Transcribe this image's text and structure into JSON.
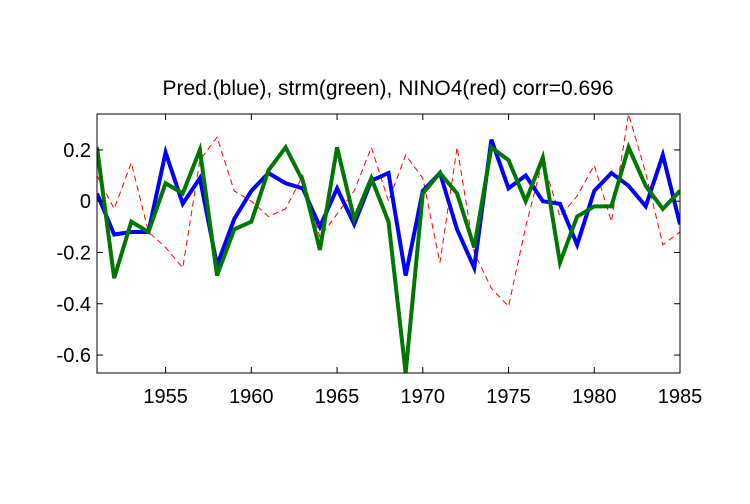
{
  "chart_data": {
    "type": "line",
    "title": "Pred.(blue), strm(green), NINO4(red) corr=0.696",
    "xlabel": "",
    "ylabel": "",
    "xlim": [
      1951,
      1985
    ],
    "ylim": [
      -0.67,
      0.34
    ],
    "grid": false,
    "x_ticks": [
      1955,
      1960,
      1965,
      1970,
      1975,
      1980,
      1985
    ],
    "y_ticks": [
      0.2,
      0,
      -0.2,
      -0.4,
      -0.6
    ],
    "y_tick_labels": [
      "0.2",
      "0",
      "-0.2",
      "-0.4",
      "-0.6"
    ],
    "x": [
      1951,
      1952,
      1953,
      1954,
      1955,
      1956,
      1957,
      1958,
      1959,
      1960,
      1961,
      1962,
      1963,
      1964,
      1965,
      1966,
      1967,
      1968,
      1969,
      1970,
      1971,
      1972,
      1973,
      1974,
      1975,
      1976,
      1977,
      1978,
      1979,
      1980,
      1981,
      1982,
      1983,
      1984,
      1985
    ],
    "series": [
      {
        "color": "#0000ff",
        "style": "solid",
        "width": 4,
        "values": [
          0.03,
          -0.13,
          -0.12,
          -0.12,
          0.19,
          -0.01,
          0.09,
          -0.25,
          -0.07,
          0.04,
          0.11,
          0.07,
          0.05,
          -0.1,
          0.05,
          -0.09,
          0.08,
          0.11,
          -0.29,
          0.04,
          0.11,
          -0.11,
          -0.26,
          0.24,
          0.05,
          0.1,
          0.0,
          -0.01,
          -0.17,
          0.04,
          0.11,
          0.06,
          -0.02,
          0.18,
          -0.09
        ]
      },
      {
        "color": "#007700",
        "style": "solid",
        "width": 4,
        "values": [
          0.21,
          -0.3,
          -0.08,
          -0.12,
          0.07,
          0.03,
          0.2,
          -0.29,
          -0.11,
          -0.08,
          0.12,
          0.21,
          0.08,
          -0.19,
          0.21,
          -0.07,
          0.09,
          -0.08,
          -0.67,
          0.03,
          0.11,
          0.03,
          -0.18,
          0.21,
          0.16,
          0.0,
          0.17,
          -0.24,
          -0.06,
          -0.02,
          -0.02,
          0.21,
          0.06,
          -0.03,
          0.04
        ]
      },
      {
        "color": "#ff0000",
        "style": "dashed",
        "width": 1,
        "values": [
          0.1,
          -0.03,
          0.15,
          -0.12,
          -0.18,
          -0.26,
          0.16,
          0.25,
          0.04,
          0.0,
          -0.06,
          -0.03,
          0.1,
          -0.14,
          -0.05,
          0.04,
          0.21,
          0.0,
          0.18,
          0.09,
          -0.24,
          0.21,
          -0.2,
          -0.34,
          -0.41,
          -0.1,
          0.16,
          -0.06,
          0.02,
          0.14,
          -0.08,
          0.34,
          0.11,
          -0.17,
          -0.12
        ]
      }
    ]
  }
}
